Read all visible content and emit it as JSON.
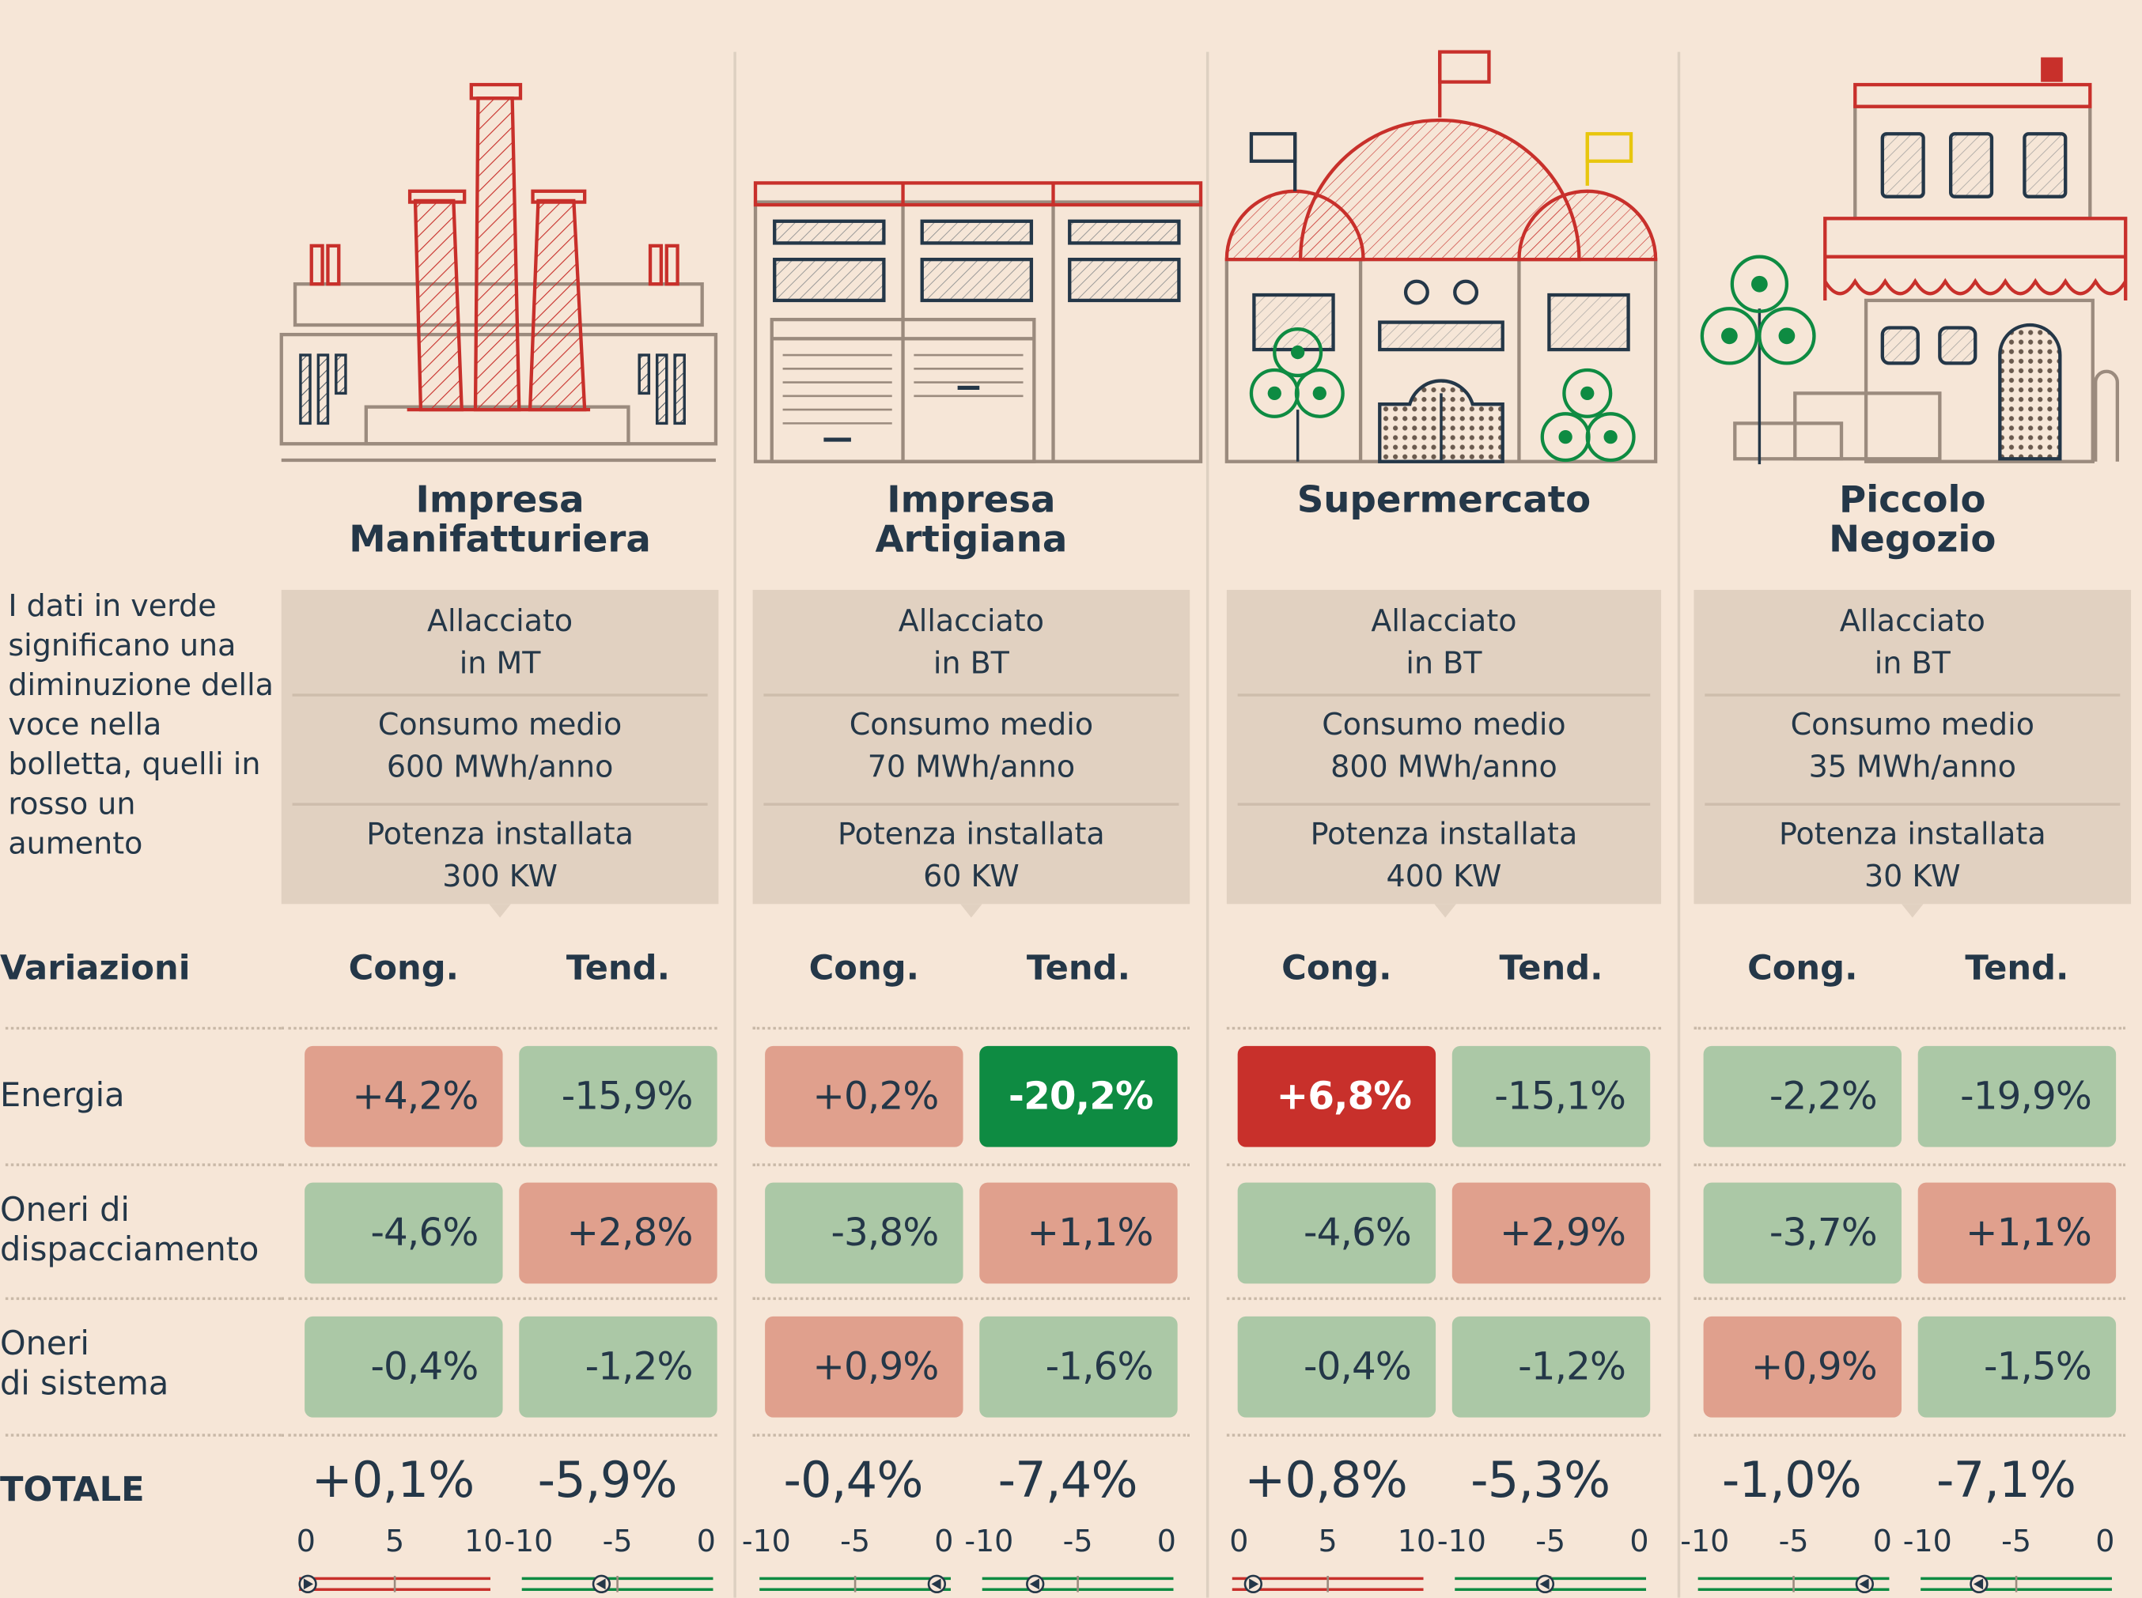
{
  "legend": "I dati in verde significano una diminuzione della voce nella bolletta, quelli in rosso un aumento",
  "header": {
    "variazioni": "Variazioni",
    "cong": "Cong.",
    "tend": "Tend."
  },
  "rows": {
    "energia": "Energia",
    "oneri_disp_1": "Oneri di",
    "oneri_disp_2": "dispacciamento",
    "oneri_sis_1": "Oneri",
    "oneri_sis_2": "di sistema",
    "totale": "TOTALE"
  },
  "columns": [
    {
      "title_1": "Impresa",
      "title_2": "Manifatturiera",
      "allacciato_1": "Allacciato",
      "allacciato_2": "in MT",
      "consumo_1": "Consumo medio",
      "consumo_2": "600 MWh/anno",
      "potenza_1": "Potenza installata",
      "potenza_2": "300 KW"
    },
    {
      "title_1": "Impresa",
      "title_2": "Artigiana",
      "allacciato_1": "Allacciato",
      "allacciato_2": "in BT",
      "consumo_1": "Consumo medio",
      "consumo_2": "70 MWh/anno",
      "potenza_1": "Potenza installata",
      "potenza_2": "60 KW"
    },
    {
      "title_1": "Supermercato",
      "title_2": "",
      "allacciato_1": "Allacciato",
      "allacciato_2": "in BT",
      "consumo_1": "Consumo medio",
      "consumo_2": "800 MWh/anno",
      "potenza_1": "Potenza installata",
      "potenza_2": "400 KW"
    },
    {
      "title_1": "Piccolo",
      "title_2": "Negozio",
      "allacciato_1": "Allacciato",
      "allacciato_2": "in BT",
      "consumo_1": "Consumo medio",
      "consumo_2": "35 MWh/anno",
      "potenza_1": "Potenza installata",
      "potenza_2": "30 KW"
    }
  ],
  "colors": {
    "increase": "#e0a08d",
    "decrease": "#abc8a6",
    "increase_strong": "#c8302b",
    "decrease_strong": "#0e8b42",
    "red_bar": "#c8302b",
    "green_bar": "#0e8b42"
  },
  "chart_data": {
    "type": "table",
    "categories": [
      "Impresa Manifatturiera",
      "Impresa Artigiana",
      "Supermercato",
      "Piccolo Negozio"
    ],
    "metrics": [
      "Cong.",
      "Tend."
    ],
    "series": [
      {
        "name": "Energia",
        "cong": [
          "+4,2%",
          "+0,2%",
          "+6,8%",
          "-2,2%"
        ],
        "tend": [
          "-15,9%",
          "-20,2%",
          "-15,1%",
          "-19,9%"
        ]
      },
      {
        "name": "Oneri di dispacciamento",
        "cong": [
          "-4,6%",
          "-3,8%",
          "-4,6%",
          "-3,7%"
        ],
        "tend": [
          "+2,8%",
          "+1,1%",
          "+2,9%",
          "+1,1%"
        ]
      },
      {
        "name": "Oneri di sistema",
        "cong": [
          "-0,4%",
          "+0,9%",
          "-0,4%",
          "+0,9%"
        ],
        "tend": [
          "-1,2%",
          "-1,6%",
          "-1,2%",
          "-1,5%"
        ]
      },
      {
        "name": "TOTALE",
        "cong": [
          "+0,1%",
          "-0,4%",
          "+0,8%",
          "-1,0%"
        ],
        "tend": [
          "-5,9%",
          "-7,4%",
          "-5,3%",
          "-7,1%"
        ]
      }
    ],
    "totals_numeric": {
      "cong": [
        0.1,
        -0.4,
        0.8,
        -1.0
      ],
      "tend": [
        -5.9,
        -7.4,
        -5.3,
        -7.1
      ]
    },
    "highlight": {
      "energia_cong_supermercato": "increase_strong",
      "energia_tend_artigiana": "decrease_strong"
    },
    "scales": {
      "positive": {
        "ticks": [
          "0",
          "5",
          "10"
        ],
        "range": [
          0,
          10
        ]
      },
      "negative": {
        "ticks": [
          "-10",
          "-5",
          "0"
        ],
        "range": [
          -10,
          0
        ]
      }
    }
  }
}
